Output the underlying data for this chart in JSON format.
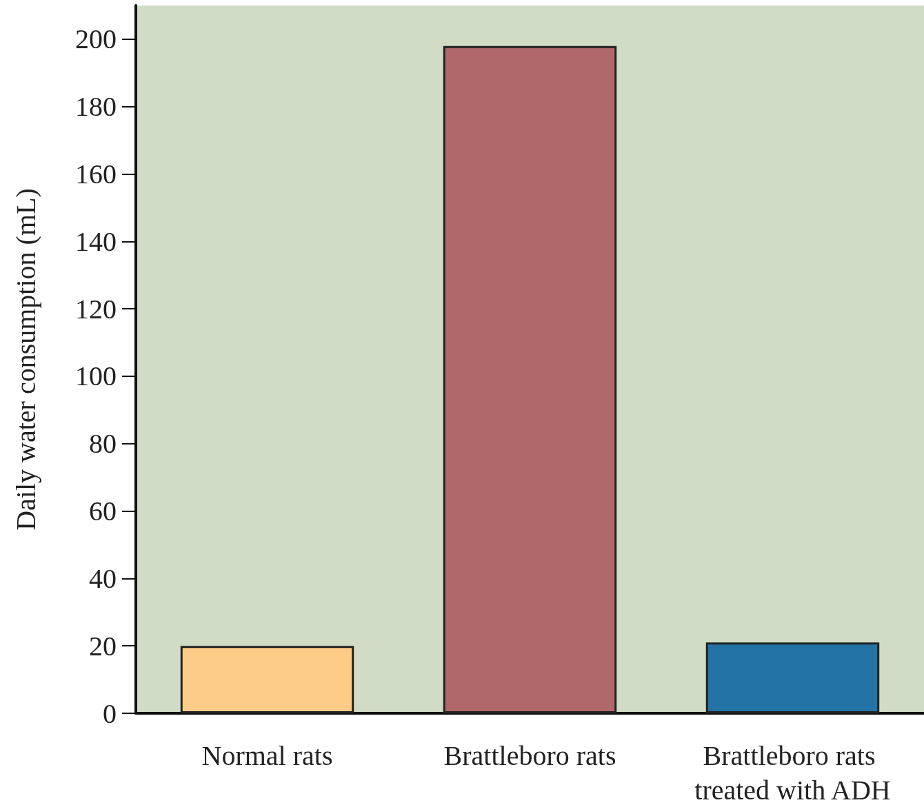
{
  "chart_data": {
    "type": "bar",
    "ylabel": "Daily water consumption (mL)",
    "categories": [
      "Normal rats",
      "Brattleboro rats",
      "Brattleboro rats treated with ADH"
    ],
    "values": [
      20,
      198,
      21
    ],
    "colors": [
      "#fccb85",
      "#b0686a",
      "#2473a6"
    ],
    "ylim": [
      0,
      210
    ],
    "yticks": [
      0,
      20,
      40,
      60,
      80,
      100,
      120,
      140,
      160,
      180,
      200
    ],
    "grid": false
  }
}
